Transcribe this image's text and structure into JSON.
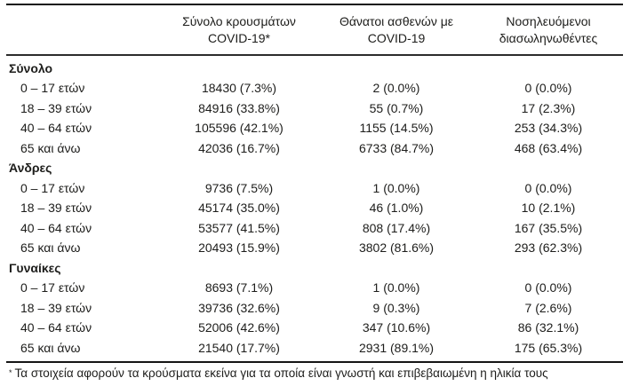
{
  "table": {
    "column_headers": [
      {
        "key": "cases",
        "line1": "Σύνολο κρουσμάτων",
        "line2": "COVID-19*"
      },
      {
        "key": "deaths",
        "line1": "Θάνατοι ασθενών με",
        "line2": "COVID-19"
      },
      {
        "key": "intubated",
        "line1": "Νοσηλευόμενοι",
        "line2": "διασωληνωθέντες"
      }
    ],
    "groups": [
      {
        "label": "Σύνολο",
        "rows": [
          {
            "label": "0 – 17 ετών",
            "cases": "18430 (7.3%)",
            "deaths": "2 (0.0%)",
            "intubated": "0 (0.0%)"
          },
          {
            "label": "18 – 39 ετών",
            "cases": "84916 (33.8%)",
            "deaths": "55 (0.7%)",
            "intubated": "17 (2.3%)"
          },
          {
            "label": "40 – 64 ετών",
            "cases": "105596 (42.1%)",
            "deaths": "1155 (14.5%)",
            "intubated": "253 (34.3%)"
          },
          {
            "label": "65 και άνω",
            "cases": "42036 (16.7%)",
            "deaths": "6733 (84.7%)",
            "intubated": "468 (63.4%)"
          }
        ]
      },
      {
        "label": "Άνδρες",
        "rows": [
          {
            "label": "0 – 17 ετών",
            "cases": "9736 (7.5%)",
            "deaths": "1 (0.0%)",
            "intubated": "0 (0.0%)"
          },
          {
            "label": "18 – 39 ετών",
            "cases": "45174 (35.0%)",
            "deaths": "46 (1.0%)",
            "intubated": "10 (2.1%)"
          },
          {
            "label": "40 – 64 ετών",
            "cases": "53577 (41.5%)",
            "deaths": "808 (17.4%)",
            "intubated": "167 (35.5%)"
          },
          {
            "label": "65 και άνω",
            "cases": "20493 (15.9%)",
            "deaths": "3802 (81.6%)",
            "intubated": "293 (62.3%)"
          }
        ]
      },
      {
        "label": "Γυναίκες",
        "rows": [
          {
            "label": "0 – 17 ετών",
            "cases": "8693 (7.1%)",
            "deaths": "1 (0.0%)",
            "intubated": "0 (0.0%)"
          },
          {
            "label": "18 – 39 ετών",
            "cases": "39736 (32.6%)",
            "deaths": "9 (0.3%)",
            "intubated": "7 (2.6%)"
          },
          {
            "label": "40 – 64 ετών",
            "cases": "52006 (42.6%)",
            "deaths": "347 (10.6%)",
            "intubated": "86 (32.1%)"
          },
          {
            "label": "65 και άνω",
            "cases": "21540 (17.7%)",
            "deaths": "2931 (89.1%)",
            "intubated": "175 (65.3%)"
          }
        ]
      }
    ],
    "footnote": {
      "marker": "*",
      "text": "Τα στοιχεία αφορούν τα κρούσματα εκείνα για τα οποία είναι γνωστή και επιβεβαιωμένη η ηλικία τους"
    }
  },
  "colors": {
    "text": "#1d1d1b",
    "rule": "#151515",
    "background": "#ffffff"
  }
}
